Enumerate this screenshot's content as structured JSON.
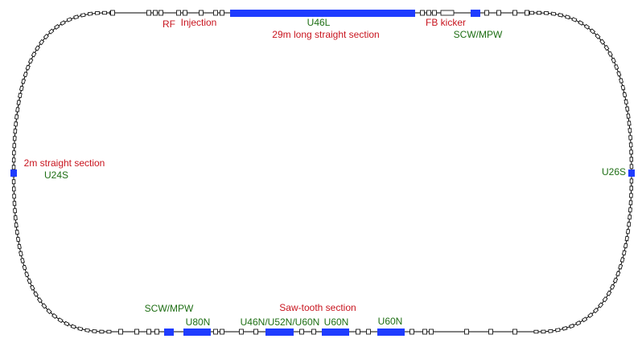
{
  "labels": [
    {
      "text": "RF"
    },
    {
      "text": "Injection"
    },
    {
      "text": "U46L"
    },
    {
      "text": "29m long straight section"
    },
    {
      "text": "FB kicker"
    },
    {
      "text": "SCW/MPW"
    },
    {
      "text": "2m straight section"
    },
    {
      "text": "U24S"
    },
    {
      "text": "U26S"
    },
    {
      "text": "SCW/MPW"
    },
    {
      "text": "Saw-tooth section"
    },
    {
      "text": "U80N"
    },
    {
      "text": "U46N/U52N/U60N"
    },
    {
      "text": "U60N"
    },
    {
      "text": "U60N"
    }
  ]
}
